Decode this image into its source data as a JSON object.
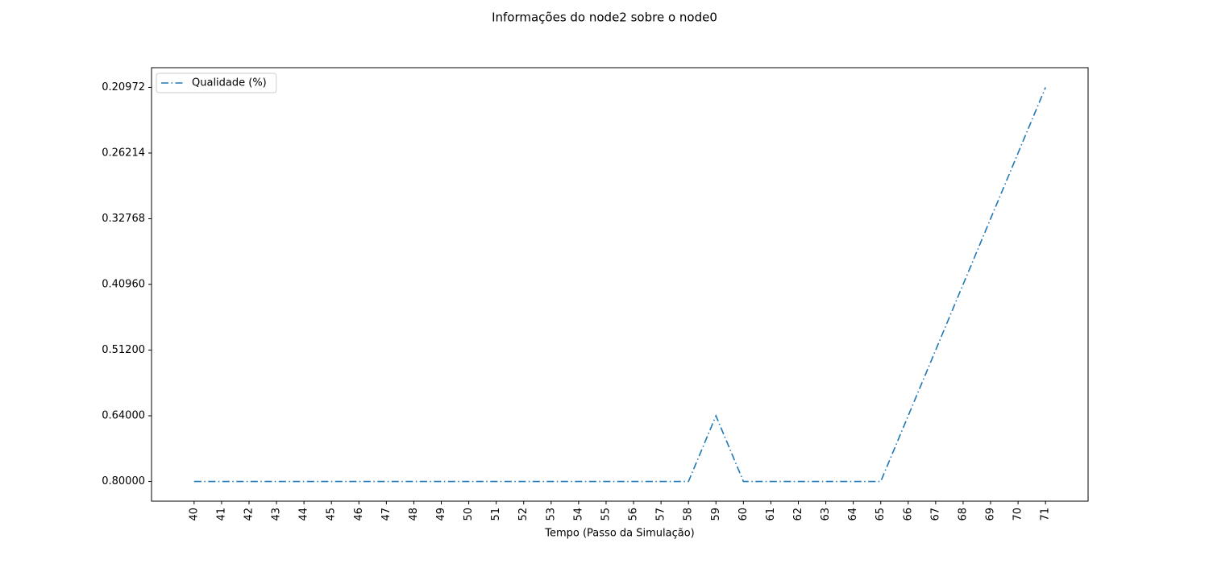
{
  "chart_data": {
    "type": "line",
    "title": "Informações do node2 sobre o node0",
    "xlabel": "Tempo (Passo da Simulação)",
    "x": [
      40,
      41,
      42,
      43,
      44,
      45,
      46,
      47,
      48,
      49,
      50,
      51,
      52,
      53,
      54,
      55,
      56,
      57,
      58,
      59,
      60,
      61,
      62,
      63,
      64,
      65,
      66,
      67,
      68,
      69,
      70,
      71
    ],
    "series": [
      {
        "name": "Qualidade (%)",
        "color": "#1f77b4",
        "line_style": "dashdot",
        "values": [
          0.8,
          0.8,
          0.8,
          0.8,
          0.8,
          0.8,
          0.8,
          0.8,
          0.8,
          0.8,
          0.8,
          0.8,
          0.8,
          0.8,
          0.8,
          0.8,
          0.8,
          0.8,
          0.8,
          0.64,
          0.8,
          0.8,
          0.8,
          0.8,
          0.8,
          0.8,
          0.64,
          0.512,
          0.4096,
          0.32768,
          0.26214,
          0.20972
        ]
      }
    ],
    "xlim": [
      38.45,
      72.55
    ],
    "xticks": [
      40,
      41,
      42,
      43,
      44,
      45,
      46,
      47,
      48,
      49,
      50,
      51,
      52,
      53,
      54,
      55,
      56,
      57,
      58,
      59,
      60,
      61,
      62,
      63,
      64,
      65,
      66,
      67,
      68,
      69,
      70,
      71
    ],
    "y_scale": "categorical",
    "yticks": [
      {
        "value": 0.8,
        "label": "0.80000"
      },
      {
        "value": 0.64,
        "label": "0.64000"
      },
      {
        "value": 0.512,
        "label": "0.51200"
      },
      {
        "value": 0.4096,
        "label": "0.40960"
      },
      {
        "value": 0.32768,
        "label": "0.32768"
      },
      {
        "value": 0.26214,
        "label": "0.26214"
      },
      {
        "value": 0.20972,
        "label": "0.20972"
      }
    ],
    "legend": "upper left"
  }
}
